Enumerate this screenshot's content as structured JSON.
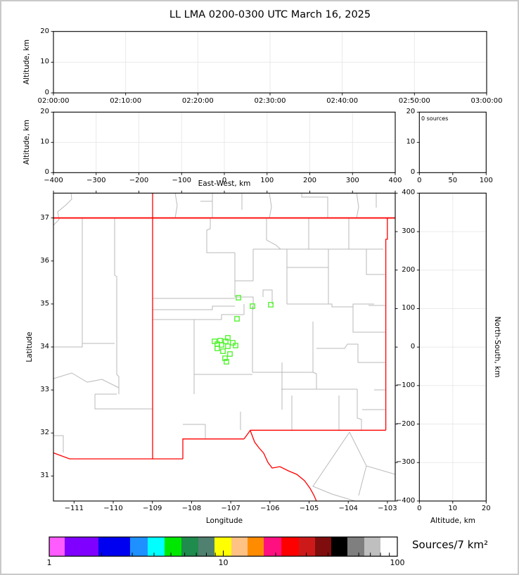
{
  "title": "LL LMA 0200-0300 UTC March 16, 2025",
  "panels": {
    "time_height": {
      "ylabel": "Altitude, km",
      "yticks": [
        "0",
        "10",
        "20"
      ],
      "xticks": [
        "02:00:00",
        "02:10:00",
        "02:20:00",
        "02:30:00",
        "02:40:00",
        "02:50:00",
        "03:00:00"
      ]
    },
    "ew_height": {
      "ylabel": "Altitude, km",
      "xlabel": "East-West, km",
      "yticks": [
        "0",
        "10",
        "20"
      ],
      "xticks": [
        "−400",
        "−300",
        "−200",
        "−100",
        "0",
        "100",
        "200",
        "300",
        "400"
      ]
    },
    "histogram": {
      "annotation": "0 sources",
      "yticks": [
        "0",
        "10",
        "20"
      ],
      "xticks": [
        "0",
        "50",
        "100"
      ]
    },
    "map": {
      "xlabel": "Longitude",
      "ylabel": "Latitude",
      "yticks": [
        "37",
        "36",
        "35",
        "34",
        "33",
        "32",
        "31"
      ],
      "xticks": [
        "−111",
        "−110",
        "−109",
        "−108",
        "−107",
        "−106",
        "−105",
        "−104",
        "−103"
      ]
    },
    "ns_height": {
      "xlabel": "Altitude, km",
      "right_label": "North-South, km",
      "xticks": [
        "0",
        "10",
        "20"
      ],
      "yticks": [
        "400",
        "300",
        "200",
        "100",
        "0",
        "−100",
        "−200",
        "−300",
        "−400"
      ]
    }
  },
  "colorbar": {
    "label": "Sources/7 km²",
    "tick_labels": [
      "1",
      "10",
      "100"
    ],
    "scale": "log",
    "range": [
      1,
      100
    ],
    "colors": [
      "#ff5cff",
      "#8000ff",
      "#0000f0",
      "#1e90ff",
      "#00ffff",
      "#00e800",
      "#1f8b4d",
      "#508070",
      "#ffff00",
      "#ffc285",
      "#ff8c00",
      "#ff1080",
      "#ff0000",
      "#cc1a1a",
      "#800d0d",
      "#000000",
      "#7f7f7f",
      "#bfbfbf",
      "#ffffff"
    ],
    "stops": [
      0,
      0.0444,
      0.1414,
      0.2323,
      0.2828,
      0.3313,
      0.3798,
      0.4283,
      0.4747,
      0.5232,
      0.5697,
      0.6162,
      0.6667,
      0.7172,
      0.7636,
      0.8101,
      0.8566,
      0.9051,
      0.9515,
      1
    ]
  },
  "style": {
    "state_border_color": "#ff0000",
    "county_line_color": "#bababa",
    "source_marker_color": "#4cf228",
    "grid_color": "#e7e7e7"
  },
  "chart_data": {
    "type": "scatter",
    "title": "LL LMA 0200-0300 UTC March 16, 2025",
    "panels": [
      {
        "id": "altitude_vs_time",
        "ylabel": "Altitude, km",
        "ylim": [
          0,
          20
        ],
        "x_range": [
          "02:00:00",
          "03:00:00"
        ],
        "points": []
      },
      {
        "id": "altitude_vs_eastwest",
        "xlabel": "East-West, km",
        "ylabel": "Altitude, km",
        "xlim": [
          -400,
          400
        ],
        "ylim": [
          0,
          20
        ],
        "points": []
      },
      {
        "id": "source_count_histogram",
        "xlim": [
          0,
          100
        ],
        "ylim": [
          0,
          20
        ],
        "annotation": "0 sources",
        "points": []
      },
      {
        "id": "plan_view_map",
        "xlabel": "Longitude",
        "ylabel": "Latitude",
        "xlim": [
          -111.53,
          -102.83
        ],
        "ylim": [
          30.42,
          37.58
        ],
        "points": [
          [
            -106.804,
            35.146
          ],
          [
            -106.445,
            34.949
          ],
          [
            -105.978,
            34.982
          ],
          [
            -106.84,
            34.655
          ],
          [
            -107.074,
            34.213
          ],
          [
            -107.415,
            34.131
          ],
          [
            -107.271,
            34.148
          ],
          [
            -107.128,
            34.131
          ],
          [
            -106.948,
            34.098
          ],
          [
            -107.343,
            34.065
          ],
          [
            -107.235,
            34.049
          ],
          [
            -107.074,
            34.016
          ],
          [
            -106.876,
            34.033
          ],
          [
            -107.343,
            33.967
          ],
          [
            -107.199,
            33.901
          ],
          [
            -107.02,
            33.836
          ],
          [
            -107.146,
            33.738
          ],
          [
            -107.11,
            33.656
          ]
        ]
      },
      {
        "id": "northsouth_vs_altitude",
        "xlabel": "Altitude, km",
        "ylabel": "North-South, km",
        "xlim": [
          0,
          20
        ],
        "ylim": [
          -400,
          400
        ],
        "points": []
      }
    ],
    "colorbar": {
      "label": "Sources/7 km²",
      "scale": "log",
      "range": [
        1,
        100
      ]
    }
  }
}
